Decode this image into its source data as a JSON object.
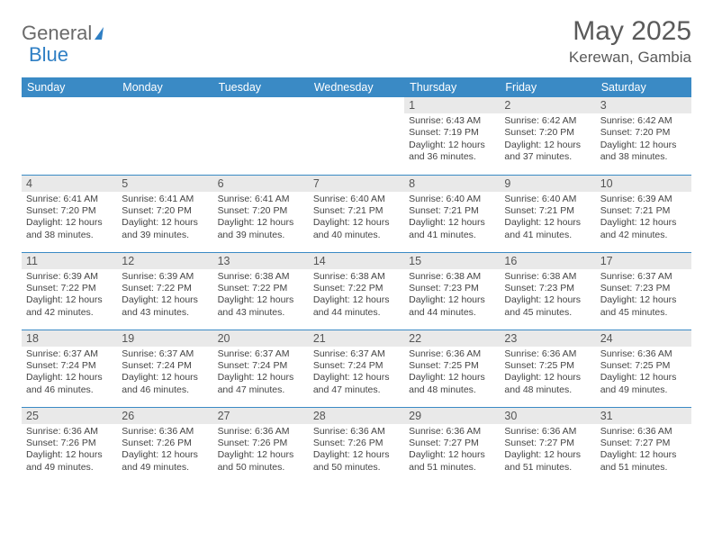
{
  "brand": {
    "part1": "General",
    "part2": "Blue"
  },
  "header": {
    "title": "May 2025",
    "subtitle": "Kerewan, Gambia"
  },
  "weekdays": [
    "Sunday",
    "Monday",
    "Tuesday",
    "Wednesday",
    "Thursday",
    "Friday",
    "Saturday"
  ],
  "theme": {
    "header_bg": "#3a8ac5",
    "header_text": "#ffffff",
    "cell_border": "#3a8ac5",
    "daynum_bg": "#e9e9e9",
    "daynum_text": "#555555",
    "body_text": "#444444",
    "title_color": "#5a5a5a",
    "logo_gray": "#6a6a6a",
    "logo_blue": "#2f7fc4",
    "title_fontsize": 30,
    "subtitle_fontsize": 17,
    "th_fontsize": 12.5,
    "daynum_fontsize": 12.5,
    "info_fontsize": 10.5
  },
  "weeks": [
    [
      null,
      null,
      null,
      null,
      {
        "d": "1",
        "sr": "Sunrise: 6:43 AM",
        "ss": "Sunset: 7:19 PM",
        "dl": "Daylight: 12 hours and 36 minutes."
      },
      {
        "d": "2",
        "sr": "Sunrise: 6:42 AM",
        "ss": "Sunset: 7:20 PM",
        "dl": "Daylight: 12 hours and 37 minutes."
      },
      {
        "d": "3",
        "sr": "Sunrise: 6:42 AM",
        "ss": "Sunset: 7:20 PM",
        "dl": "Daylight: 12 hours and 38 minutes."
      }
    ],
    [
      {
        "d": "4",
        "sr": "Sunrise: 6:41 AM",
        "ss": "Sunset: 7:20 PM",
        "dl": "Daylight: 12 hours and 38 minutes."
      },
      {
        "d": "5",
        "sr": "Sunrise: 6:41 AM",
        "ss": "Sunset: 7:20 PM",
        "dl": "Daylight: 12 hours and 39 minutes."
      },
      {
        "d": "6",
        "sr": "Sunrise: 6:41 AM",
        "ss": "Sunset: 7:20 PM",
        "dl": "Daylight: 12 hours and 39 minutes."
      },
      {
        "d": "7",
        "sr": "Sunrise: 6:40 AM",
        "ss": "Sunset: 7:21 PM",
        "dl": "Daylight: 12 hours and 40 minutes."
      },
      {
        "d": "8",
        "sr": "Sunrise: 6:40 AM",
        "ss": "Sunset: 7:21 PM",
        "dl": "Daylight: 12 hours and 41 minutes."
      },
      {
        "d": "9",
        "sr": "Sunrise: 6:40 AM",
        "ss": "Sunset: 7:21 PM",
        "dl": "Daylight: 12 hours and 41 minutes."
      },
      {
        "d": "10",
        "sr": "Sunrise: 6:39 AM",
        "ss": "Sunset: 7:21 PM",
        "dl": "Daylight: 12 hours and 42 minutes."
      }
    ],
    [
      {
        "d": "11",
        "sr": "Sunrise: 6:39 AM",
        "ss": "Sunset: 7:22 PM",
        "dl": "Daylight: 12 hours and 42 minutes."
      },
      {
        "d": "12",
        "sr": "Sunrise: 6:39 AM",
        "ss": "Sunset: 7:22 PM",
        "dl": "Daylight: 12 hours and 43 minutes."
      },
      {
        "d": "13",
        "sr": "Sunrise: 6:38 AM",
        "ss": "Sunset: 7:22 PM",
        "dl": "Daylight: 12 hours and 43 minutes."
      },
      {
        "d": "14",
        "sr": "Sunrise: 6:38 AM",
        "ss": "Sunset: 7:22 PM",
        "dl": "Daylight: 12 hours and 44 minutes."
      },
      {
        "d": "15",
        "sr": "Sunrise: 6:38 AM",
        "ss": "Sunset: 7:23 PM",
        "dl": "Daylight: 12 hours and 44 minutes."
      },
      {
        "d": "16",
        "sr": "Sunrise: 6:38 AM",
        "ss": "Sunset: 7:23 PM",
        "dl": "Daylight: 12 hours and 45 minutes."
      },
      {
        "d": "17",
        "sr": "Sunrise: 6:37 AM",
        "ss": "Sunset: 7:23 PM",
        "dl": "Daylight: 12 hours and 45 minutes."
      }
    ],
    [
      {
        "d": "18",
        "sr": "Sunrise: 6:37 AM",
        "ss": "Sunset: 7:24 PM",
        "dl": "Daylight: 12 hours and 46 minutes."
      },
      {
        "d": "19",
        "sr": "Sunrise: 6:37 AM",
        "ss": "Sunset: 7:24 PM",
        "dl": "Daylight: 12 hours and 46 minutes."
      },
      {
        "d": "20",
        "sr": "Sunrise: 6:37 AM",
        "ss": "Sunset: 7:24 PM",
        "dl": "Daylight: 12 hours and 47 minutes."
      },
      {
        "d": "21",
        "sr": "Sunrise: 6:37 AM",
        "ss": "Sunset: 7:24 PM",
        "dl": "Daylight: 12 hours and 47 minutes."
      },
      {
        "d": "22",
        "sr": "Sunrise: 6:36 AM",
        "ss": "Sunset: 7:25 PM",
        "dl": "Daylight: 12 hours and 48 minutes."
      },
      {
        "d": "23",
        "sr": "Sunrise: 6:36 AM",
        "ss": "Sunset: 7:25 PM",
        "dl": "Daylight: 12 hours and 48 minutes."
      },
      {
        "d": "24",
        "sr": "Sunrise: 6:36 AM",
        "ss": "Sunset: 7:25 PM",
        "dl": "Daylight: 12 hours and 49 minutes."
      }
    ],
    [
      {
        "d": "25",
        "sr": "Sunrise: 6:36 AM",
        "ss": "Sunset: 7:26 PM",
        "dl": "Daylight: 12 hours and 49 minutes."
      },
      {
        "d": "26",
        "sr": "Sunrise: 6:36 AM",
        "ss": "Sunset: 7:26 PM",
        "dl": "Daylight: 12 hours and 49 minutes."
      },
      {
        "d": "27",
        "sr": "Sunrise: 6:36 AM",
        "ss": "Sunset: 7:26 PM",
        "dl": "Daylight: 12 hours and 50 minutes."
      },
      {
        "d": "28",
        "sr": "Sunrise: 6:36 AM",
        "ss": "Sunset: 7:26 PM",
        "dl": "Daylight: 12 hours and 50 minutes."
      },
      {
        "d": "29",
        "sr": "Sunrise: 6:36 AM",
        "ss": "Sunset: 7:27 PM",
        "dl": "Daylight: 12 hours and 51 minutes."
      },
      {
        "d": "30",
        "sr": "Sunrise: 6:36 AM",
        "ss": "Sunset: 7:27 PM",
        "dl": "Daylight: 12 hours and 51 minutes."
      },
      {
        "d": "31",
        "sr": "Sunrise: 6:36 AM",
        "ss": "Sunset: 7:27 PM",
        "dl": "Daylight: 12 hours and 51 minutes."
      }
    ]
  ]
}
